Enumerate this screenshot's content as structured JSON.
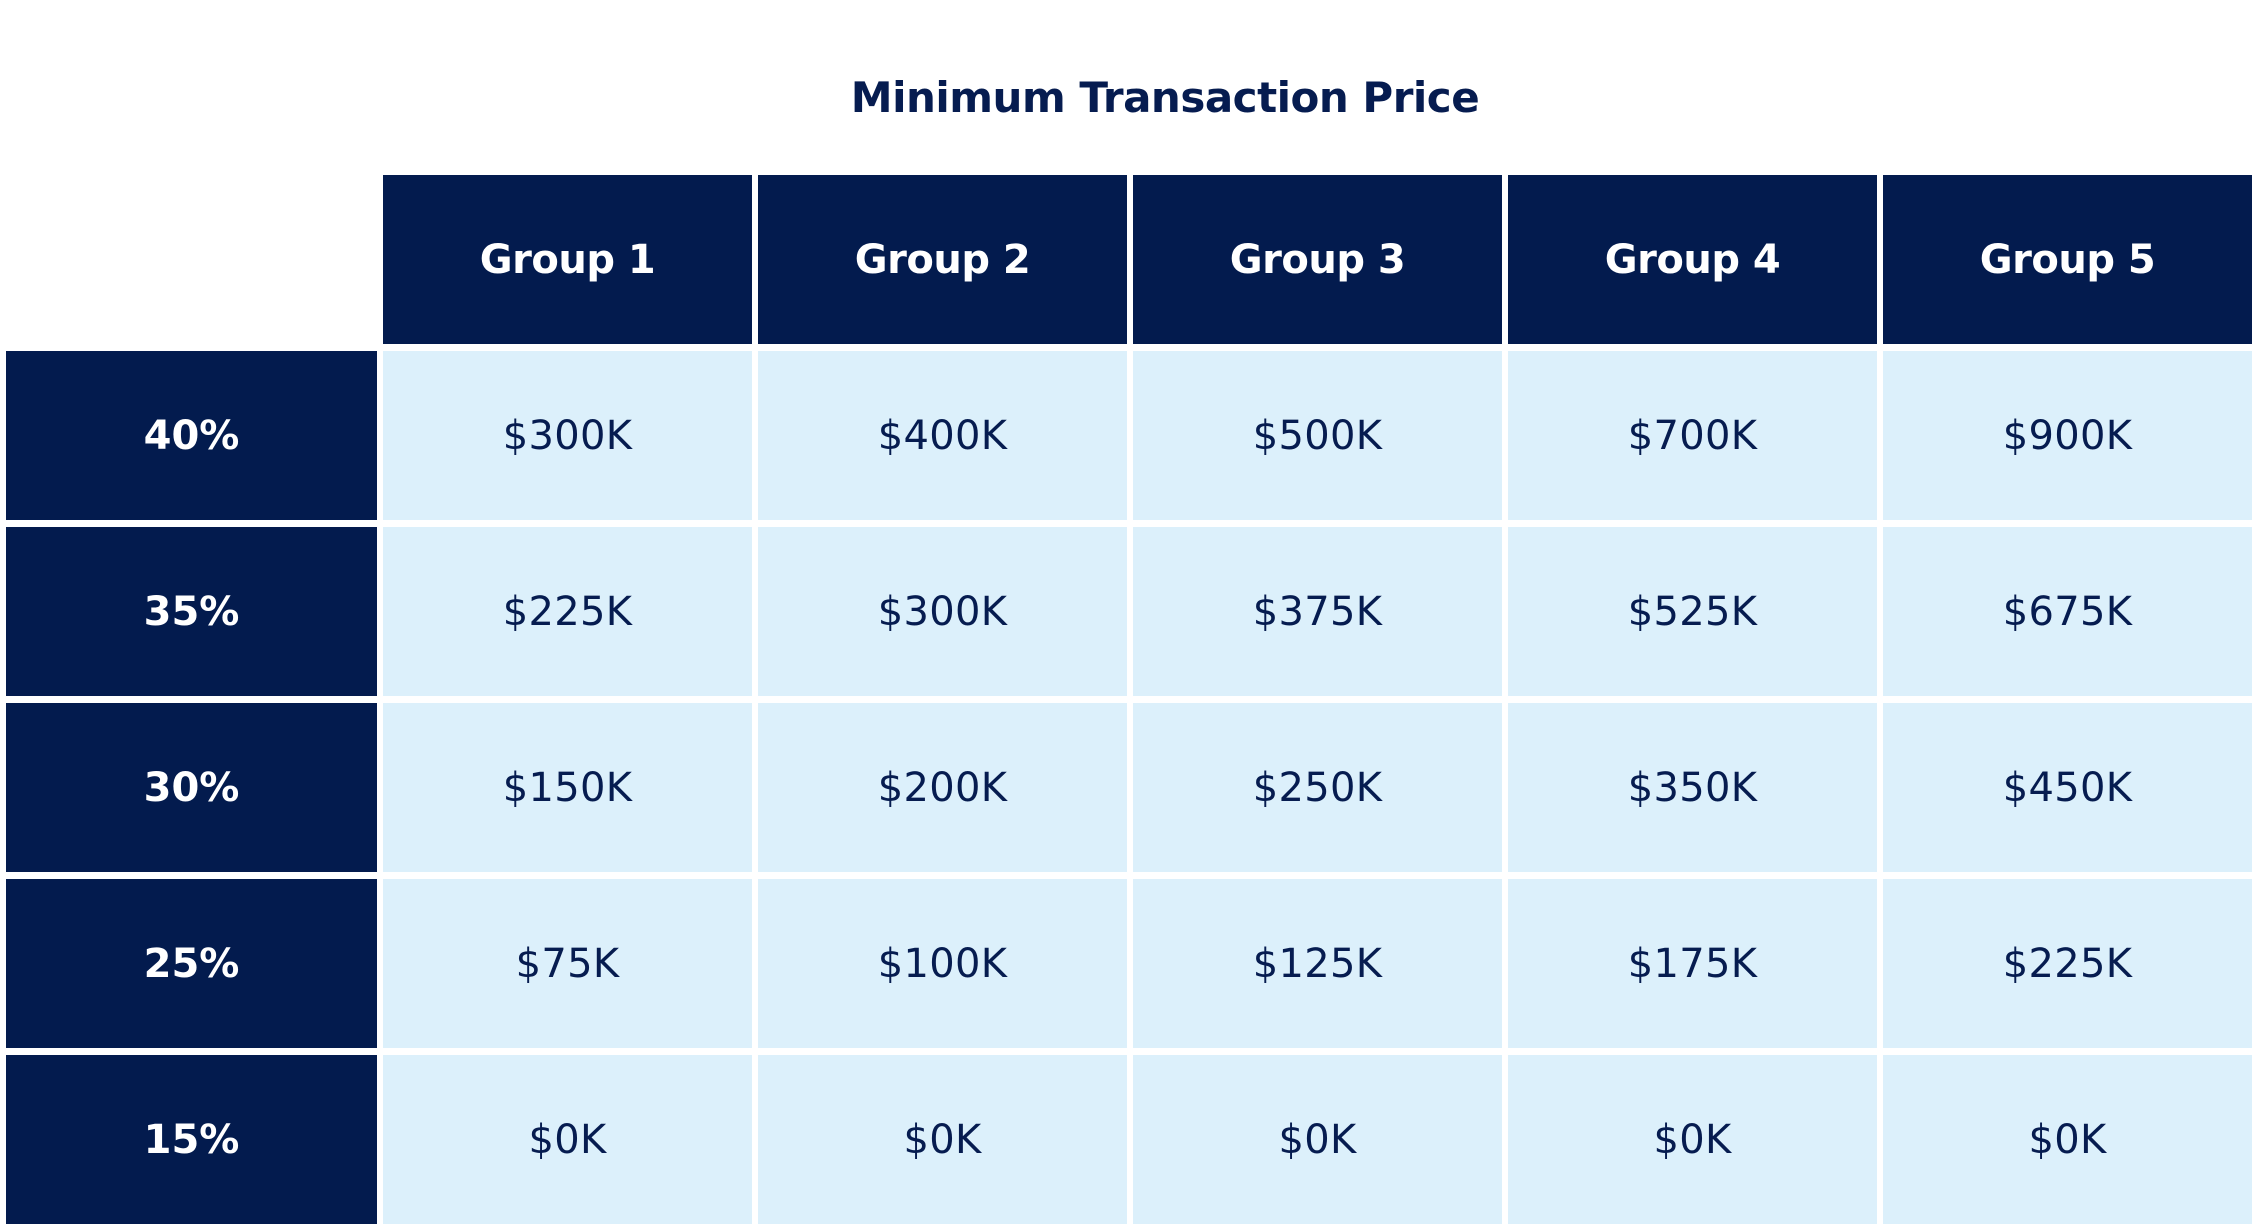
{
  "chart_data": {
    "type": "table",
    "title": "Minimum Transaction Price",
    "columns": [
      "Group 1",
      "Group 2",
      "Group 3",
      "Group 4",
      "Group 5"
    ],
    "rows": [
      {
        "label": "40%",
        "values": [
          "$300K",
          "$400K",
          "$500K",
          "$700K",
          "$900K"
        ]
      },
      {
        "label": "35%",
        "values": [
          "$225K",
          "$300K",
          "$375K",
          "$525K",
          "$675K"
        ]
      },
      {
        "label": "30%",
        "values": [
          "$150K",
          "$200K",
          "$250K",
          "$350K",
          "$450K"
        ]
      },
      {
        "label": "25%",
        "values": [
          "$75K",
          "$100K",
          "$125K",
          "$175K",
          "$225K"
        ]
      },
      {
        "label": "15%",
        "values": [
          "$0K",
          "$0K",
          "$0K",
          "$0K",
          "$0K"
        ]
      }
    ]
  },
  "colors": {
    "header_fill": "#031b4e",
    "cell_fill": "#dcf0fb",
    "title_text": "#061c50"
  }
}
